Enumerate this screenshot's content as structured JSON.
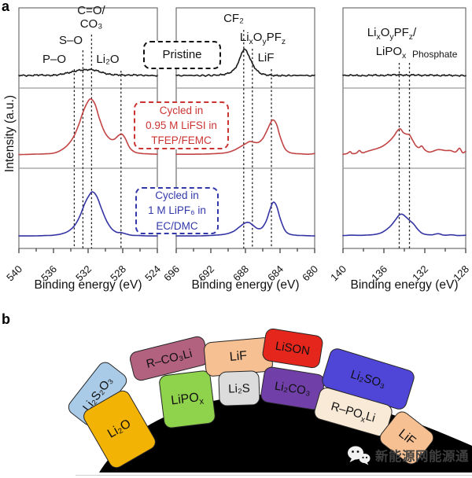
{
  "figure": {
    "panel_a": "a",
    "panel_b": "b"
  },
  "chart_data": [
    {
      "type": "line",
      "panel": "left",
      "x_range": [
        540,
        524
      ],
      "x_ticks": [
        540,
        536,
        532,
        528,
        524
      ],
      "minor_tick_step": 2,
      "xlabel": "Binding energy (eV)",
      "ylabel": "Intensity (a.u.)",
      "annotations": {
        "p_o": "P–O",
        "s_o": "S–O",
        "c_o": "C=O/\nCO₃",
        "li2o": "Li₂O"
      },
      "guides": [
        {
          "ev": 533.6,
          "top": 88
        },
        {
          "ev": 532.6,
          "top": 64
        },
        {
          "ev": 531.6,
          "top": 44
        },
        {
          "ev": 528.2,
          "top": 90
        }
      ],
      "series": [
        {
          "name": "Pristine",
          "color": "#1c1c1c",
          "noise": true,
          "points": [
            [
              540,
              0.025
            ],
            [
              538.8,
              0.02
            ],
            [
              537.6,
              0.028
            ],
            [
              536.5,
              0.022
            ],
            [
              535.5,
              0.03
            ],
            [
              534.6,
              0.05
            ],
            [
              533.8,
              0.07
            ],
            [
              533.1,
              0.09
            ],
            [
              532.4,
              0.095
            ],
            [
              531.7,
              0.1
            ],
            [
              531,
              0.085
            ],
            [
              530.2,
              0.055
            ],
            [
              529.4,
              0.035
            ],
            [
              528.6,
              0.03
            ],
            [
              527.6,
              0.025
            ],
            [
              526.6,
              0.028
            ],
            [
              525.4,
              0.022
            ],
            [
              524,
              0.018
            ]
          ]
        },
        {
          "name": "Cycled in 0.95 M LiFSI in TFEP/FEMC",
          "color": "#c24444",
          "noise": false,
          "points": [
            [
              540,
              0.035
            ],
            [
              538.5,
              0.04
            ],
            [
              537,
              0.045
            ],
            [
              536,
              0.055
            ],
            [
              535.2,
              0.09
            ],
            [
              534.4,
              0.16
            ],
            [
              533.7,
              0.27
            ],
            [
              533.1,
              0.43
            ],
            [
              532.6,
              0.6
            ],
            [
              532.1,
              0.73
            ],
            [
              531.7,
              0.78
            ],
            [
              531.2,
              0.71
            ],
            [
              530.7,
              0.52
            ],
            [
              530.1,
              0.34
            ],
            [
              529.5,
              0.25
            ],
            [
              529,
              0.24
            ],
            [
              528.5,
              0.29
            ],
            [
              528.1,
              0.31
            ],
            [
              527.7,
              0.25
            ],
            [
              527.2,
              0.13
            ],
            [
              526.6,
              0.07
            ],
            [
              525.8,
              0.05
            ],
            [
              525,
              0.045
            ],
            [
              524,
              0.04
            ]
          ]
        },
        {
          "name": "Cycled in 1 M LiPF6 in EC/DMC",
          "color": "#3434a4",
          "noise": false,
          "points": [
            [
              540,
              0.02
            ],
            [
              538.5,
              0.02
            ],
            [
              537,
              0.025
            ],
            [
              536,
              0.03
            ],
            [
              535,
              0.05
            ],
            [
              534.2,
              0.09
            ],
            [
              533.5,
              0.17
            ],
            [
              532.9,
              0.3
            ],
            [
              532.4,
              0.45
            ],
            [
              531.9,
              0.56
            ],
            [
              531.5,
              0.61
            ],
            [
              531,
              0.55
            ],
            [
              530.5,
              0.4
            ],
            [
              529.9,
              0.23
            ],
            [
              529.3,
              0.12
            ],
            [
              528.7,
              0.07
            ],
            [
              528.2,
              0.065
            ],
            [
              527.7,
              0.05
            ],
            [
              527,
              0.03
            ],
            [
              526,
              0.025
            ],
            [
              525,
              0.02
            ],
            [
              524,
              0.02
            ]
          ]
        }
      ]
    },
    {
      "type": "line",
      "panel": "middle",
      "x_range": [
        696,
        680
      ],
      "x_ticks": [
        696,
        692,
        688,
        684,
        680
      ],
      "minor_tick_step": 2,
      "xlabel": "Binding energy (eV)",
      "annotations": {
        "cf2": "CF₂",
        "lixoypfz": [
          {
            "t": "Li"
          },
          {
            "t": "x",
            "sub": true
          },
          {
            "t": "O"
          },
          {
            "t": "y",
            "sub": true
          },
          {
            "t": "PF"
          },
          {
            "t": "z",
            "sub": true
          }
        ],
        "lif": "LiF"
      },
      "guides": [
        {
          "ev": 688.2,
          "top": 38
        },
        {
          "ev": 687.2,
          "top": 62
        },
        {
          "ev": 685.0,
          "top": 88
        }
      ],
      "series": [
        {
          "name": "Pristine",
          "color": "#1c1c1c",
          "noise": true,
          "points": [
            [
              696,
              0.02
            ],
            [
              694.5,
              0.022
            ],
            [
              693,
              0.02
            ],
            [
              691.5,
              0.025
            ],
            [
              690.3,
              0.04
            ],
            [
              689.4,
              0.09
            ],
            [
              688.8,
              0.2
            ],
            [
              688.4,
              0.33
            ],
            [
              688.1,
              0.37
            ],
            [
              687.7,
              0.31
            ],
            [
              687.2,
              0.18
            ],
            [
              686.6,
              0.08
            ],
            [
              686,
              0.04
            ],
            [
              685.2,
              0.025
            ],
            [
              684.2,
              0.02
            ],
            [
              683,
              0.02
            ],
            [
              681.5,
              0.022
            ],
            [
              680,
              0.018
            ]
          ]
        },
        {
          "name": "Cycled in 0.95 M LiFSI in TFEP/FEMC",
          "color": "#c24444",
          "noise": false,
          "points": [
            [
              696,
              0.04
            ],
            [
              694.5,
              0.04
            ],
            [
              693,
              0.042
            ],
            [
              691.5,
              0.048
            ],
            [
              690.3,
              0.06
            ],
            [
              689.4,
              0.09
            ],
            [
              688.6,
              0.14
            ],
            [
              688,
              0.18
            ],
            [
              687.5,
              0.21
            ],
            [
              687,
              0.2
            ],
            [
              686.5,
              0.2
            ],
            [
              686,
              0.25
            ],
            [
              685.5,
              0.36
            ],
            [
              685.1,
              0.46
            ],
            [
              684.8,
              0.5
            ],
            [
              684.4,
              0.44
            ],
            [
              684,
              0.28
            ],
            [
              683.5,
              0.13
            ],
            [
              683,
              0.07
            ],
            [
              682.3,
              0.05
            ],
            [
              681.5,
              0.045
            ],
            [
              680.7,
              0.04
            ],
            [
              680,
              0.05
            ]
          ]
        },
        {
          "name": "Cycled in 1 M LiPF6 in EC/DMC",
          "color": "#3434a4",
          "noise": false,
          "points": [
            [
              696,
              0.02
            ],
            [
              694.5,
              0.02
            ],
            [
              693,
              0.022
            ],
            [
              691.5,
              0.03
            ],
            [
              690.3,
              0.045
            ],
            [
              689.4,
              0.08
            ],
            [
              688.7,
              0.14
            ],
            [
              688.1,
              0.19
            ],
            [
              687.6,
              0.2
            ],
            [
              687.1,
              0.16
            ],
            [
              686.6,
              0.12
            ],
            [
              686.1,
              0.13
            ],
            [
              685.6,
              0.22
            ],
            [
              685.2,
              0.36
            ],
            [
              684.8,
              0.47
            ],
            [
              684.4,
              0.42
            ],
            [
              684,
              0.26
            ],
            [
              683.5,
              0.11
            ],
            [
              683,
              0.05
            ],
            [
              682.2,
              0.03
            ],
            [
              681.2,
              0.025
            ],
            [
              680,
              0.02
            ]
          ]
        }
      ]
    },
    {
      "type": "line",
      "panel": "right",
      "x_range": [
        140,
        128
      ],
      "x_ticks": [
        140,
        136,
        132,
        128
      ],
      "minor_tick_step": 2,
      "xlabel": "Binding energy (eV)",
      "annotations": {
        "lixoypfz_lipox": [
          {
            "t": "Li"
          },
          {
            "t": "x",
            "sub": true
          },
          {
            "t": "O"
          },
          {
            "t": "y",
            "sub": true
          },
          {
            "t": "PF"
          },
          {
            "t": "z",
            "sub": true
          },
          {
            "t": "/"
          }
        ],
        "lipox": [
          {
            "t": "LiPO"
          },
          {
            "t": "x",
            "sub": true
          }
        ],
        "phosphate": "Phosphate"
      },
      "guides": [
        {
          "ev": 134.5,
          "top": 80
        },
        {
          "ev": 133.5,
          "top": 80
        }
      ],
      "series": [
        {
          "name": "Pristine",
          "color": "#1c1c1c",
          "noise": true,
          "points": [
            [
              140,
              0.02
            ],
            [
              139,
              0.024
            ],
            [
              138,
              0.018
            ],
            [
              137,
              0.026
            ],
            [
              136.2,
              0.02
            ],
            [
              135.4,
              0.028
            ],
            [
              134.6,
              0.03
            ],
            [
              133.8,
              0.024
            ],
            [
              133,
              0.028
            ],
            [
              132.2,
              0.022
            ],
            [
              131.4,
              0.026
            ],
            [
              130.6,
              0.02
            ],
            [
              129.8,
              0.024
            ],
            [
              129,
              0.02
            ],
            [
              128,
              0.02
            ]
          ]
        },
        {
          "name": "Cycled in 0.95 M LiFSI in TFEP/FEMC",
          "color": "#c24444",
          "noise": false,
          "points": [
            [
              140,
              0.04
            ],
            [
              139.6,
              0.05
            ],
            [
              139.3,
              0.075
            ],
            [
              139.1,
              0.05
            ],
            [
              138.7,
              0.055
            ],
            [
              138.4,
              0.09
            ],
            [
              138.1,
              0.06
            ],
            [
              137.6,
              0.08
            ],
            [
              137.1,
              0.1
            ],
            [
              136.6,
              0.12
            ],
            [
              136.1,
              0.15
            ],
            [
              135.6,
              0.2
            ],
            [
              135.1,
              0.27
            ],
            [
              134.7,
              0.35
            ],
            [
              134.4,
              0.38
            ],
            [
              134.1,
              0.33
            ],
            [
              133.8,
              0.31
            ],
            [
              133.5,
              0.3
            ],
            [
              133.2,
              0.23
            ],
            [
              132.9,
              0.16
            ],
            [
              132.6,
              0.13
            ],
            [
              132.3,
              0.15
            ],
            [
              132,
              0.1
            ],
            [
              131.6,
              0.07
            ],
            [
              131.2,
              0.08
            ],
            [
              130.8,
              0.1
            ],
            [
              130.4,
              0.1
            ],
            [
              130,
              0.09
            ],
            [
              129.5,
              0.09
            ],
            [
              129,
              0.07
            ],
            [
              128.6,
              0.12
            ],
            [
              128.3,
              0.06
            ],
            [
              128,
              0.08
            ]
          ]
        },
        {
          "name": "Cycled in 1 M LiPF6 in EC/DMC",
          "color": "#3434a4",
          "noise": false,
          "points": [
            [
              140,
              0.025
            ],
            [
              139.2,
              0.03
            ],
            [
              138.4,
              0.028
            ],
            [
              137.6,
              0.032
            ],
            [
              136.9,
              0.04
            ],
            [
              136.3,
              0.06
            ],
            [
              135.8,
              0.1
            ],
            [
              135.3,
              0.16
            ],
            [
              134.9,
              0.23
            ],
            [
              134.5,
              0.3
            ],
            [
              134.2,
              0.31
            ],
            [
              133.9,
              0.28
            ],
            [
              133.5,
              0.23
            ],
            [
              133.1,
              0.18
            ],
            [
              132.7,
              0.11
            ],
            [
              132.3,
              0.06
            ],
            [
              131.9,
              0.04
            ],
            [
              131.3,
              0.035
            ],
            [
              130.7,
              0.05
            ],
            [
              130.1,
              0.03
            ],
            [
              129.4,
              0.035
            ],
            [
              128.7,
              0.025
            ],
            [
              128,
              0.03
            ]
          ]
        }
      ]
    }
  ],
  "annotations": {
    "pristine": "Pristine",
    "lifsi": [
      "Cycled in",
      "0.95 M LiFSI in",
      "TFEP/FEMC"
    ],
    "lifsi_color": "#cc3333",
    "lipf6": [
      "Cycled in",
      "1 M LiPF₆ in",
      "EC/DMC"
    ],
    "lipf6_color": "#3238aa"
  },
  "diagram": {
    "substrate_color": "#000000",
    "blocks": [
      {
        "id": "li2s2o3",
        "label": "Li₂S₂O₃",
        "color": "#a9cbe8"
      },
      {
        "id": "li2o",
        "label": "Li₂O",
        "color": "#f3b304"
      },
      {
        "id": "r_co3li",
        "label": "R–CO₃Li",
        "color": "#b2617f"
      },
      {
        "id": "lipox",
        "label_rich": [
          {
            "t": "LiPO"
          },
          {
            "t": "x",
            "sub": true
          }
        ],
        "color": "#8fd24b"
      },
      {
        "id": "lif_outer",
        "label": "LiF",
        "color": "#f6c092"
      },
      {
        "id": "li2s",
        "label": "Li₂S",
        "color": "#dcdcdc"
      },
      {
        "id": "lison",
        "label": "LiSON",
        "color": "#e5261d"
      },
      {
        "id": "li2co3",
        "label": "Li₂CO₃",
        "color": "#7040a8"
      },
      {
        "id": "li2so3",
        "label": "Li₂SO₃",
        "color": "#4f46d8"
      },
      {
        "id": "r_poxli",
        "label_rich": [
          {
            "t": "R–PO"
          },
          {
            "t": "x",
            "sub": true
          },
          {
            "t": "Li"
          }
        ],
        "color": "#f8ead6"
      },
      {
        "id": "lif_inner",
        "label": "LiF",
        "color": "#f6c092"
      }
    ]
  },
  "watermark": {
    "text": "新能源网能源通",
    "icon": "wechat-icon",
    "text_color": "#3f3f3f",
    "icon_color": "#f2f2f2"
  }
}
